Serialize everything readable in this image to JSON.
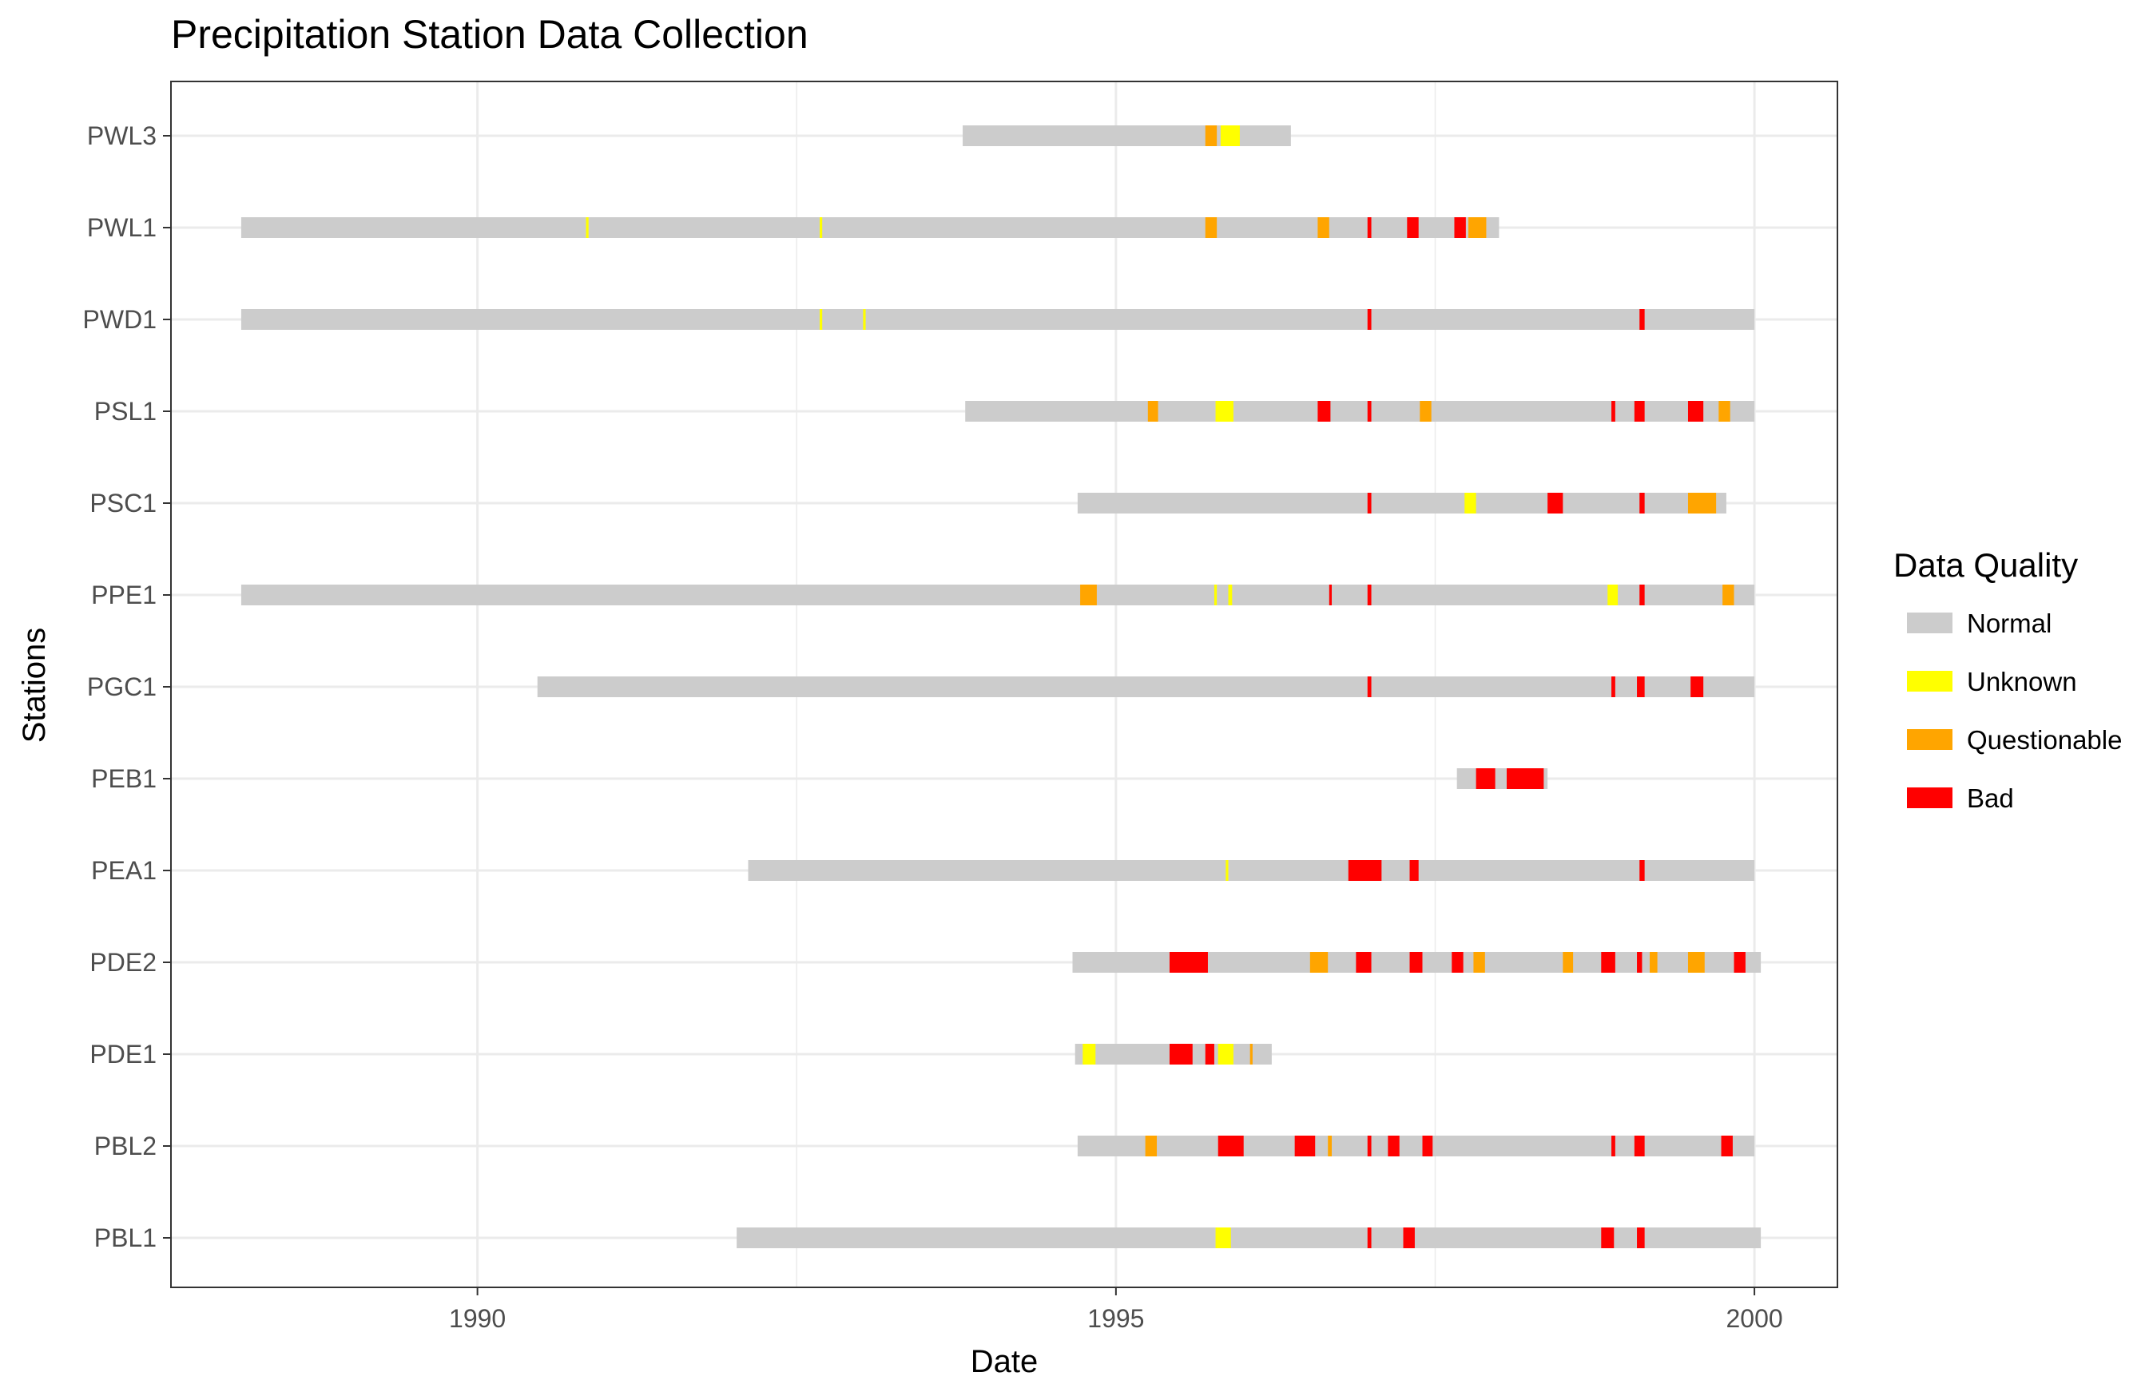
{
  "chart_data": {
    "type": "timeline",
    "title": "Precipitation Station Data Collection",
    "xlabel": "Date",
    "ylabel": "Stations",
    "xlim": [
      1987.6,
      2000.65
    ],
    "x_ticks": [
      1990,
      1995,
      2000
    ],
    "grid": true,
    "legend": {
      "title": "Data Quality",
      "position": "right",
      "entries": [
        {
          "label": "Normal",
          "color": "#cccccc"
        },
        {
          "label": "Unknown",
          "color": "#ffff00"
        },
        {
          "label": "Questionable",
          "color": "#ffa500"
        },
        {
          "label": "Bad",
          "color": "#ff0000"
        }
      ]
    },
    "stations": [
      {
        "name": "PWL3",
        "start": 1993.8,
        "end": 1996.37,
        "segments": [
          {
            "from": 1995.7,
            "to": 1995.79,
            "quality": "Questionable"
          },
          {
            "from": 1995.82,
            "to": 1995.97,
            "quality": "Unknown"
          }
        ]
      },
      {
        "name": "PWL1",
        "start": 1988.15,
        "end": 1998.0,
        "segments": [
          {
            "from": 1990.85,
            "to": 1990.87,
            "quality": "Unknown"
          },
          {
            "from": 1992.68,
            "to": 1992.7,
            "quality": "Unknown"
          },
          {
            "from": 1995.7,
            "to": 1995.79,
            "quality": "Questionable"
          },
          {
            "from": 1996.58,
            "to": 1996.67,
            "quality": "Questionable"
          },
          {
            "from": 1996.97,
            "to": 1997.0,
            "quality": "Bad"
          },
          {
            "from": 1997.28,
            "to": 1997.37,
            "quality": "Bad"
          },
          {
            "from": 1997.65,
            "to": 1997.74,
            "quality": "Bad"
          },
          {
            "from": 1997.76,
            "to": 1997.9,
            "quality": "Questionable"
          }
        ]
      },
      {
        "name": "PWD1",
        "start": 1988.15,
        "end": 2000.0,
        "segments": [
          {
            "from": 1992.68,
            "to": 1992.7,
            "quality": "Unknown"
          },
          {
            "from": 1993.02,
            "to": 1993.04,
            "quality": "Unknown"
          },
          {
            "from": 1996.97,
            "to": 1997.0,
            "quality": "Bad"
          },
          {
            "from": 1999.1,
            "to": 1999.14,
            "quality": "Bad"
          }
        ]
      },
      {
        "name": "PSL1",
        "start": 1993.82,
        "end": 2000.0,
        "segments": [
          {
            "from": 1995.25,
            "to": 1995.33,
            "quality": "Questionable"
          },
          {
            "from": 1995.78,
            "to": 1995.92,
            "quality": "Unknown"
          },
          {
            "from": 1996.58,
            "to": 1996.68,
            "quality": "Bad"
          },
          {
            "from": 1996.97,
            "to": 1997.0,
            "quality": "Bad"
          },
          {
            "from": 1997.38,
            "to": 1997.47,
            "quality": "Questionable"
          },
          {
            "from": 1998.88,
            "to": 1998.91,
            "quality": "Bad"
          },
          {
            "from": 1999.06,
            "to": 1999.14,
            "quality": "Bad"
          },
          {
            "from": 1999.48,
            "to": 1999.6,
            "quality": "Bad"
          },
          {
            "from": 1999.72,
            "to": 1999.81,
            "quality": "Questionable"
          }
        ]
      },
      {
        "name": "PSC1",
        "start": 1994.7,
        "end": 1999.78,
        "segments": [
          {
            "from": 1996.97,
            "to": 1997.0,
            "quality": "Bad"
          },
          {
            "from": 1997.73,
            "to": 1997.82,
            "quality": "Unknown"
          },
          {
            "from": 1998.38,
            "to": 1998.5,
            "quality": "Bad"
          },
          {
            "from": 1999.1,
            "to": 1999.14,
            "quality": "Bad"
          },
          {
            "from": 1999.48,
            "to": 1999.7,
            "quality": "Questionable"
          }
        ]
      },
      {
        "name": "PPE1",
        "start": 1988.15,
        "end": 2000.0,
        "segments": [
          {
            "from": 1994.72,
            "to": 1994.85,
            "quality": "Questionable"
          },
          {
            "from": 1995.77,
            "to": 1995.79,
            "quality": "Unknown"
          },
          {
            "from": 1995.88,
            "to": 1995.91,
            "quality": "Unknown"
          },
          {
            "from": 1996.67,
            "to": 1996.69,
            "quality": "Bad"
          },
          {
            "from": 1996.97,
            "to": 1997.0,
            "quality": "Bad"
          },
          {
            "from": 1998.85,
            "to": 1998.93,
            "quality": "Unknown"
          },
          {
            "from": 1999.1,
            "to": 1999.14,
            "quality": "Bad"
          },
          {
            "from": 1999.75,
            "to": 1999.84,
            "quality": "Questionable"
          }
        ]
      },
      {
        "name": "PGC1",
        "start": 1990.47,
        "end": 2000.0,
        "segments": [
          {
            "from": 1996.97,
            "to": 1997.0,
            "quality": "Bad"
          },
          {
            "from": 1998.88,
            "to": 1998.91,
            "quality": "Bad"
          },
          {
            "from": 1999.08,
            "to": 1999.14,
            "quality": "Bad"
          },
          {
            "from": 1999.5,
            "to": 1999.6,
            "quality": "Bad"
          }
        ]
      },
      {
        "name": "PEB1",
        "start": 1997.67,
        "end": 1998.38,
        "segments": [
          {
            "from": 1997.82,
            "to": 1997.97,
            "quality": "Bad"
          },
          {
            "from": 1998.06,
            "to": 1998.35,
            "quality": "Bad"
          }
        ]
      },
      {
        "name": "PEA1",
        "start": 1992.12,
        "end": 2000.0,
        "segments": [
          {
            "from": 1995.86,
            "to": 1995.88,
            "quality": "Unknown"
          },
          {
            "from": 1996.82,
            "to": 1997.08,
            "quality": "Bad"
          },
          {
            "from": 1997.3,
            "to": 1997.37,
            "quality": "Bad"
          },
          {
            "from": 1999.1,
            "to": 1999.14,
            "quality": "Bad"
          }
        ]
      },
      {
        "name": "PDE2",
        "start": 1994.66,
        "end": 2000.05,
        "segments": [
          {
            "from": 1995.42,
            "to": 1995.72,
            "quality": "Bad"
          },
          {
            "from": 1996.52,
            "to": 1996.66,
            "quality": "Questionable"
          },
          {
            "from": 1996.88,
            "to": 1997.0,
            "quality": "Bad"
          },
          {
            "from": 1997.3,
            "to": 1997.4,
            "quality": "Bad"
          },
          {
            "from": 1997.63,
            "to": 1997.72,
            "quality": "Bad"
          },
          {
            "from": 1997.8,
            "to": 1997.89,
            "quality": "Questionable"
          },
          {
            "from": 1998.5,
            "to": 1998.58,
            "quality": "Questionable"
          },
          {
            "from": 1998.8,
            "to": 1998.91,
            "quality": "Bad"
          },
          {
            "from": 1999.08,
            "to": 1999.12,
            "quality": "Bad"
          },
          {
            "from": 1999.18,
            "to": 1999.24,
            "quality": "Questionable"
          },
          {
            "from": 1999.48,
            "to": 1999.61,
            "quality": "Questionable"
          },
          {
            "from": 1999.84,
            "to": 1999.93,
            "quality": "Bad"
          }
        ]
      },
      {
        "name": "PDE1",
        "start": 1994.68,
        "end": 1996.22,
        "segments": [
          {
            "from": 1994.74,
            "to": 1994.84,
            "quality": "Unknown"
          },
          {
            "from": 1995.42,
            "to": 1995.6,
            "quality": "Bad"
          },
          {
            "from": 1995.7,
            "to": 1995.77,
            "quality": "Bad"
          },
          {
            "from": 1995.8,
            "to": 1995.92,
            "quality": "Unknown"
          },
          {
            "from": 1996.05,
            "to": 1996.07,
            "quality": "Questionable"
          }
        ]
      },
      {
        "name": "PBL2",
        "start": 1994.7,
        "end": 2000.0,
        "segments": [
          {
            "from": 1995.23,
            "to": 1995.32,
            "quality": "Questionable"
          },
          {
            "from": 1995.8,
            "to": 1996.0,
            "quality": "Bad"
          },
          {
            "from": 1996.4,
            "to": 1996.56,
            "quality": "Bad"
          },
          {
            "from": 1996.66,
            "to": 1996.69,
            "quality": "Questionable"
          },
          {
            "from": 1996.97,
            "to": 1997.0,
            "quality": "Bad"
          },
          {
            "from": 1997.13,
            "to": 1997.22,
            "quality": "Bad"
          },
          {
            "from": 1997.4,
            "to": 1997.48,
            "quality": "Bad"
          },
          {
            "from": 1998.88,
            "to": 1998.91,
            "quality": "Bad"
          },
          {
            "from": 1999.06,
            "to": 1999.14,
            "quality": "Bad"
          },
          {
            "from": 1999.74,
            "to": 1999.83,
            "quality": "Bad"
          }
        ]
      },
      {
        "name": "PBL1",
        "start": 1992.03,
        "end": 2000.05,
        "segments": [
          {
            "from": 1995.78,
            "to": 1995.9,
            "quality": "Unknown"
          },
          {
            "from": 1996.97,
            "to": 1997.0,
            "quality": "Bad"
          },
          {
            "from": 1997.25,
            "to": 1997.34,
            "quality": "Bad"
          },
          {
            "from": 1998.8,
            "to": 1998.9,
            "quality": "Bad"
          },
          {
            "from": 1999.08,
            "to": 1999.14,
            "quality": "Bad"
          }
        ]
      }
    ]
  }
}
